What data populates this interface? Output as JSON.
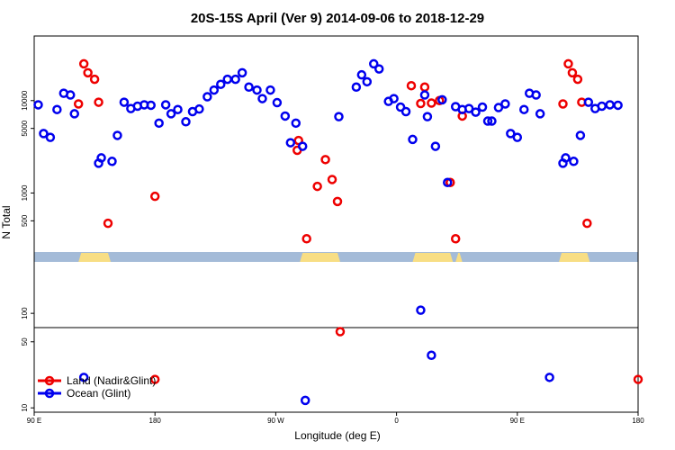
{
  "chart_data": {
    "type": "scatter",
    "title": "20S-15S April (Ver 9)   2014-09-06 to 2018-12-29",
    "xlabel": "Longitude (deg E)",
    "ylabel": "N Total",
    "x_ticks": [
      {
        "value": 90,
        "label": "90 E"
      },
      {
        "value": 180,
        "label": "180"
      },
      {
        "value": 270,
        "label": "90 W"
      },
      {
        "value": 360,
        "label": "0"
      },
      {
        "value": 450,
        "label": "90 E"
      },
      {
        "value": 540,
        "label": "180"
      }
    ],
    "xlim": [
      90,
      540
    ],
    "y_scale": "log",
    "y_ticks_upper": [
      {
        "value": 500,
        "label": "500"
      },
      {
        "value": 1000,
        "label": "1000"
      },
      {
        "value": 5000,
        "label": "5000"
      },
      {
        "value": 10000,
        "label": "10000"
      }
    ],
    "y_ticks_lower": [
      {
        "value": 10,
        "label": "10"
      },
      {
        "value": 50,
        "label": "50"
      },
      {
        "value": 100,
        "label": "100"
      }
    ],
    "ylim_upper": [
      230,
      50000
    ],
    "ylim_lower": [
      9,
      350
    ],
    "land_ocean_strip": {
      "ocean_color": "#a4bbd8",
      "land_color": "#f8de84",
      "land_ranges": [
        [
          123,
          147
        ],
        [
          288,
          318
        ],
        [
          372,
          402
        ],
        [
          404,
          409
        ],
        [
          481,
          504
        ]
      ]
    },
    "legend_position": "bottom-left",
    "series": [
      {
        "name": "Land (Nadir&Glint)",
        "color": "#ee0000",
        "points": [
          [
            123,
            9200
          ],
          [
            127,
            25000
          ],
          [
            130,
            20000
          ],
          [
            135,
            17000
          ],
          [
            138,
            9600
          ],
          [
            145,
            470
          ],
          [
            180,
            920
          ],
          [
            180,
            20
          ],
          [
            286,
            2900
          ],
          [
            287,
            3700
          ],
          [
            293,
            320
          ],
          [
            301,
            1180
          ],
          [
            307,
            2300
          ],
          [
            312,
            1400
          ],
          [
            316,
            810
          ],
          [
            318,
            64
          ],
          [
            371,
            14500
          ],
          [
            378,
            9300
          ],
          [
            381,
            14000
          ],
          [
            386,
            9400
          ],
          [
            392,
            10000
          ],
          [
            400,
            1300
          ],
          [
            404,
            320
          ],
          [
            409,
            6800
          ],
          [
            484,
            9200
          ],
          [
            488,
            25000
          ],
          [
            491,
            20000
          ],
          [
            495,
            17000
          ],
          [
            498,
            9600
          ],
          [
            502,
            470
          ],
          [
            540,
            20
          ]
        ]
      },
      {
        "name": "Ocean (Glint)",
        "color": "#0000ee",
        "points": [
          [
            93,
            9000
          ],
          [
            97,
            4400
          ],
          [
            102,
            4000
          ],
          [
            107,
            8000
          ],
          [
            112,
            12000
          ],
          [
            117,
            11500
          ],
          [
            120,
            7200
          ],
          [
            127,
            21
          ],
          [
            138,
            2100
          ],
          [
            140,
            2400
          ],
          [
            148,
            2200
          ],
          [
            152,
            4200
          ],
          [
            157,
            9600
          ],
          [
            162,
            8200
          ],
          [
            167,
            8700
          ],
          [
            172,
            9000
          ],
          [
            177,
            8900
          ],
          [
            183,
            5700
          ],
          [
            188,
            9000
          ],
          [
            192,
            7200
          ],
          [
            197,
            8000
          ],
          [
            203,
            5900
          ],
          [
            208,
            7600
          ],
          [
            213,
            8100
          ],
          [
            219,
            11000
          ],
          [
            224,
            13000
          ],
          [
            229,
            15000
          ],
          [
            234,
            17000
          ],
          [
            240,
            17000
          ],
          [
            245,
            20000
          ],
          [
            250,
            14000
          ],
          [
            256,
            13000
          ],
          [
            260,
            10500
          ],
          [
            266,
            13000
          ],
          [
            271,
            9500
          ],
          [
            277,
            6800
          ],
          [
            281,
            3500
          ],
          [
            285,
            5700
          ],
          [
            290,
            3200
          ],
          [
            292,
            12
          ],
          [
            317,
            6700
          ],
          [
            330,
            14000
          ],
          [
            334,
            19000
          ],
          [
            338,
            16000
          ],
          [
            343,
            25000
          ],
          [
            347,
            22000
          ],
          [
            354,
            9800
          ],
          [
            358,
            10500
          ],
          [
            363,
            8500
          ],
          [
            367,
            7600
          ],
          [
            372,
            3800
          ],
          [
            378,
            108
          ],
          [
            381,
            11500
          ],
          [
            383,
            6700
          ],
          [
            386,
            36
          ],
          [
            389,
            3200
          ],
          [
            394,
            10200
          ],
          [
            398,
            1300
          ],
          [
            404,
            8600
          ],
          [
            409,
            8000
          ],
          [
            414,
            8200
          ],
          [
            419,
            7500
          ],
          [
            424,
            8500
          ],
          [
            428,
            6000
          ],
          [
            431,
            6000
          ],
          [
            436,
            8400
          ],
          [
            441,
            9200
          ],
          [
            445,
            4400
          ],
          [
            450,
            4000
          ],
          [
            455,
            8000
          ],
          [
            459,
            12000
          ],
          [
            464,
            11500
          ],
          [
            467,
            7200
          ],
          [
            474,
            21
          ],
          [
            484,
            2100
          ],
          [
            486,
            2400
          ],
          [
            492,
            2200
          ],
          [
            497,
            4200
          ],
          [
            503,
            9600
          ],
          [
            508,
            8200
          ],
          [
            513,
            8700
          ],
          [
            519,
            9000
          ],
          [
            525,
            8900
          ]
        ]
      }
    ]
  }
}
